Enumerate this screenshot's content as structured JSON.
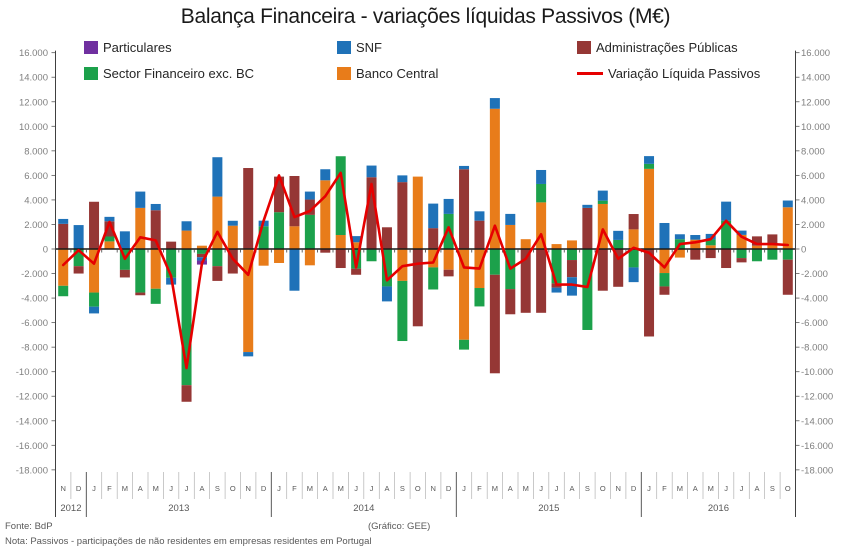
{
  "title": "Balança Financeira - variações líquidas Passivos (M€)",
  "legend": [
    {
      "label": "Particulares",
      "color": "#7030A0",
      "marker": "box"
    },
    {
      "label": "SNF",
      "color": "#1F72B8",
      "marker": "box"
    },
    {
      "label": "Administrações Públicas",
      "color": "#953735",
      "marker": "box"
    },
    {
      "label": "Sector Financeiro exc. BC",
      "color": "#1CA14B",
      "marker": "box"
    },
    {
      "label": "Banco Central",
      "color": "#E87C1A",
      "marker": "box"
    },
    {
      "label": "Variação Líquida Passivos",
      "color": "#E60000",
      "marker": "line"
    }
  ],
  "footer": {
    "source": "Fonte: BdP",
    "credit": "(Gráfico: GEE)",
    "note": "Nota: Passivos - participações de não residentes em empresas residentes em Portugal"
  },
  "chart_data": {
    "type": "bar",
    "subtype": "stacked-bar-with-line",
    "unit": "M€",
    "ylim": [
      -18000,
      16000
    ],
    "ytick_step": 2000,
    "y_ticks": [
      "16.000",
      "14.000",
      "12.000",
      "10.000",
      "8.000",
      "6.000",
      "4.000",
      "2.000",
      "0",
      "-2.000",
      "-4.000",
      "-6.000",
      "-8.000",
      "-10.000",
      "-12.000",
      "-14.000",
      "-16.000",
      "-18.000"
    ],
    "grid": false,
    "legend_position": "top",
    "months": [
      "N",
      "D",
      "J",
      "F",
      "M",
      "A",
      "M",
      "J",
      "J",
      "A",
      "S",
      "O",
      "N",
      "D",
      "J",
      "F",
      "M",
      "A",
      "M",
      "J",
      "J",
      "A",
      "S",
      "O",
      "N",
      "D",
      "J",
      "F",
      "M",
      "A",
      "M",
      "J",
      "J",
      "A",
      "S",
      "O",
      "N",
      "D",
      "J",
      "F",
      "M",
      "A",
      "M",
      "J",
      "J",
      "A",
      "S",
      "O"
    ],
    "year_groups": [
      {
        "label": "2012",
        "months": 2
      },
      {
        "label": "2013",
        "months": 12
      },
      {
        "label": "2014",
        "months": 12
      },
      {
        "label": "2015",
        "months": 12
      },
      {
        "label": "2016",
        "months": 10
      }
    ],
    "stack_order_from_axis": [
      "bc",
      "sf",
      "ap",
      "snf",
      "part"
    ],
    "series": [
      {
        "id": "part",
        "name": "Particulares",
        "color": "#7030A0",
        "values": [
          0,
          0,
          0,
          0,
          0,
          0,
          0,
          0,
          0,
          -330,
          0,
          0,
          0,
          0,
          0,
          0,
          0,
          0,
          0,
          0,
          0,
          0,
          0,
          0,
          0,
          0,
          0,
          0,
          0,
          0,
          0,
          0,
          0,
          0,
          0,
          0,
          0,
          0,
          0,
          0,
          0,
          0,
          0,
          0,
          0,
          0,
          0,
          0
        ]
      },
      {
        "id": "snf",
        "name": "SNF",
        "color": "#1F72B8",
        "values": [
          400,
          1950,
          -550,
          360,
          1440,
          1330,
          510,
          -550,
          760,
          -270,
          3210,
          400,
          -350,
          460,
          0,
          -3400,
          650,
          900,
          0,
          500,
          950,
          -1220,
          550,
          0,
          2000,
          1220,
          270,
          760,
          870,
          900,
          0,
          1140,
          -400,
          -1500,
          250,
          820,
          740,
          -1200,
          630,
          2120,
          400,
          380,
          450,
          1550,
          350,
          0,
          0,
          550
        ]
      },
      {
        "id": "ap",
        "name": "Administrações Públicas",
        "color": "#953735",
        "values": [
          2050,
          -600,
          3850,
          1240,
          -620,
          -220,
          3160,
          600,
          -1350,
          -270,
          -1200,
          -2000,
          6600,
          0,
          2900,
          4100,
          1250,
          -300,
          -1550,
          -500,
          5850,
          1770,
          5450,
          -6300,
          1700,
          -540,
          6500,
          2310,
          -8030,
          -2050,
          -5200,
          -5200,
          -350,
          -1400,
          3350,
          -3400,
          -3080,
          1250,
          -7130,
          -680,
          0,
          -870,
          -740,
          -1550,
          -350,
          760,
          730,
          -2860
        ]
      },
      {
        "id": "sf",
        "name": "Sector Financeiro exc. BC",
        "color": "#1CA14B",
        "values": [
          -850,
          -1400,
          -1150,
          400,
          -1700,
          -3550,
          -1230,
          -2350,
          -11100,
          -400,
          -1400,
          0,
          0,
          1850,
          3000,
          0,
          2780,
          0,
          6420,
          -1600,
          -1000,
          -3050,
          -4900,
          0,
          -1800,
          2860,
          -800,
          -1500,
          -2100,
          -3270,
          0,
          1500,
          -2800,
          -900,
          -6600,
          270,
          740,
          -1500,
          410,
          -1090,
          800,
          0,
          480,
          2310,
          -740,
          -1000,
          -870,
          -870
        ]
      },
      {
        "id": "bc",
        "name": "Banco Central",
        "color": "#E87C1A",
        "values": [
          -3000,
          0,
          -3550,
          620,
          0,
          3350,
          -3240,
          0,
          1500,
          270,
          4270,
          1900,
          -8400,
          -1360,
          -1140,
          1850,
          -1330,
          5600,
          1140,
          550,
          0,
          0,
          -2600,
          5900,
          -1500,
          -1690,
          -7400,
          -3180,
          11430,
          1960,
          800,
          3800,
          400,
          700,
          0,
          3670,
          0,
          1600,
          6530,
          -1960,
          -700,
          760,
          300,
          0,
          1150,
          270,
          460,
          3400
        ]
      }
    ],
    "line_series": {
      "name": "Variação Líquida Passivos",
      "color": "#E60000",
      "values": [
        -1300,
        -100,
        -1200,
        2200,
        -800,
        950,
        700,
        -2200,
        -9700,
        -1150,
        1400,
        -800,
        -2100,
        2300,
        6000,
        2600,
        3100,
        4300,
        6200,
        -1500,
        5300,
        -2550,
        -1400,
        -1200,
        -1100,
        1770,
        -1500,
        -1600,
        1900,
        -1600,
        -800,
        1200,
        -2900,
        -2900,
        -3100,
        1600,
        -800,
        100,
        -300,
        -1500,
        400,
        550,
        800,
        2300,
        1000,
        400,
        400,
        330
      ]
    }
  }
}
